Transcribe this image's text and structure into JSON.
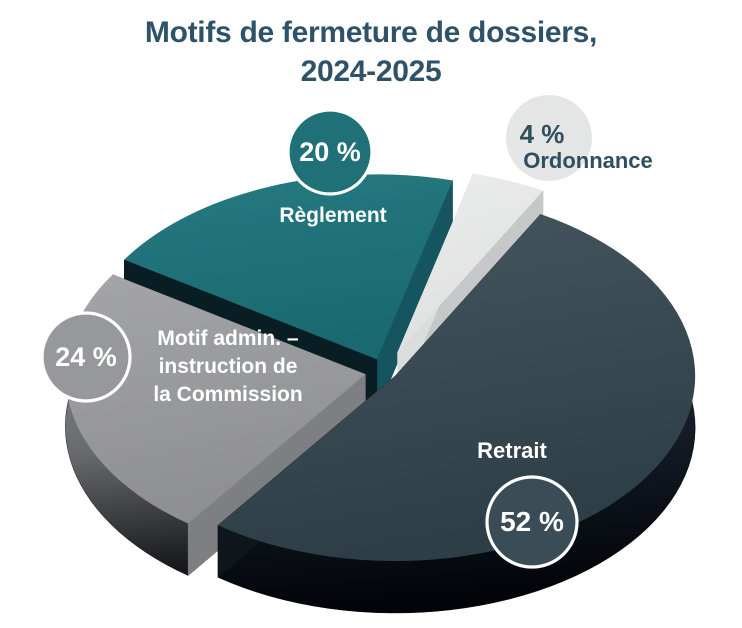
{
  "chart_data": {
    "type": "pie",
    "style": "3d-exploded",
    "title": "Motifs de fermeture de dossiers,\n2024-2025",
    "unit": "%",
    "legend": "none",
    "slices": [
      {
        "label": "Ordonnance",
        "value": 4,
        "value_label": "4 %",
        "top_colors": [
          "#EBECEC",
          "#DFE0E0"
        ],
        "rim_colors": [
          "#D2D3D4",
          "#C6C7C8"
        ],
        "wall_colors": [
          "#C6C7C8",
          "#DBDCDC"
        ],
        "label_color": "#2F4F5E",
        "badge": {
          "fill": "#E4E5E5",
          "text_color": "#2F4F5E",
          "ring": null
        }
      },
      {
        "label": "Règlement",
        "value": 20,
        "value_label": "20 %",
        "top_colors": [
          "#257A80",
          "#1A6971"
        ],
        "rim_colors": [
          "#0F3A44",
          "#071E24"
        ],
        "wall_colors": [
          "#15555F",
          "#091E24"
        ],
        "label_color": "#FFFFFF",
        "badge": {
          "fill": "#1F7077",
          "text_color": "#FFFFFF",
          "ring": "#FFFFFF"
        }
      },
      {
        "label": "Motif admin. – instruction de la Commission",
        "label_lines": [
          "Motif admin. –",
          "instruction de",
          "la Commission"
        ],
        "value": 24,
        "value_label": "24 %",
        "top_colors": [
          "#A4A5A8",
          "#8E8F92"
        ],
        "rim_colors": [
          "#85868A",
          "#6A6B6F",
          "#17181B"
        ],
        "wall_colors": [
          "#6E6F73",
          "#7E7F83"
        ],
        "label_color": "#FFFFFF",
        "badge": {
          "fill": "#97989C",
          "text_color": "#FFFFFF",
          "ring": "#FFFFFF"
        }
      },
      {
        "label": "Retrait",
        "value": 52,
        "value_label": "52 %",
        "top_colors": [
          "#45565F",
          "#2E3E47"
        ],
        "rim_colors": [
          "#33414C",
          "#17212B",
          "#02040A"
        ],
        "wall_colors": [
          "#0E151B",
          "#1B262D"
        ],
        "label_color": "#FFFFFF",
        "badge": {
          "fill": "#3A4C55",
          "text_color": "#FFFFFF",
          "ring": "#FFFFFF"
        }
      }
    ],
    "layout_hints": {
      "start_angle_deg": 61,
      "direction": "counterclockwise",
      "labels": "on-slice names with circular value badges"
    }
  },
  "page": {
    "background": "#FFFFFF",
    "title_color": "#2E5368"
  }
}
